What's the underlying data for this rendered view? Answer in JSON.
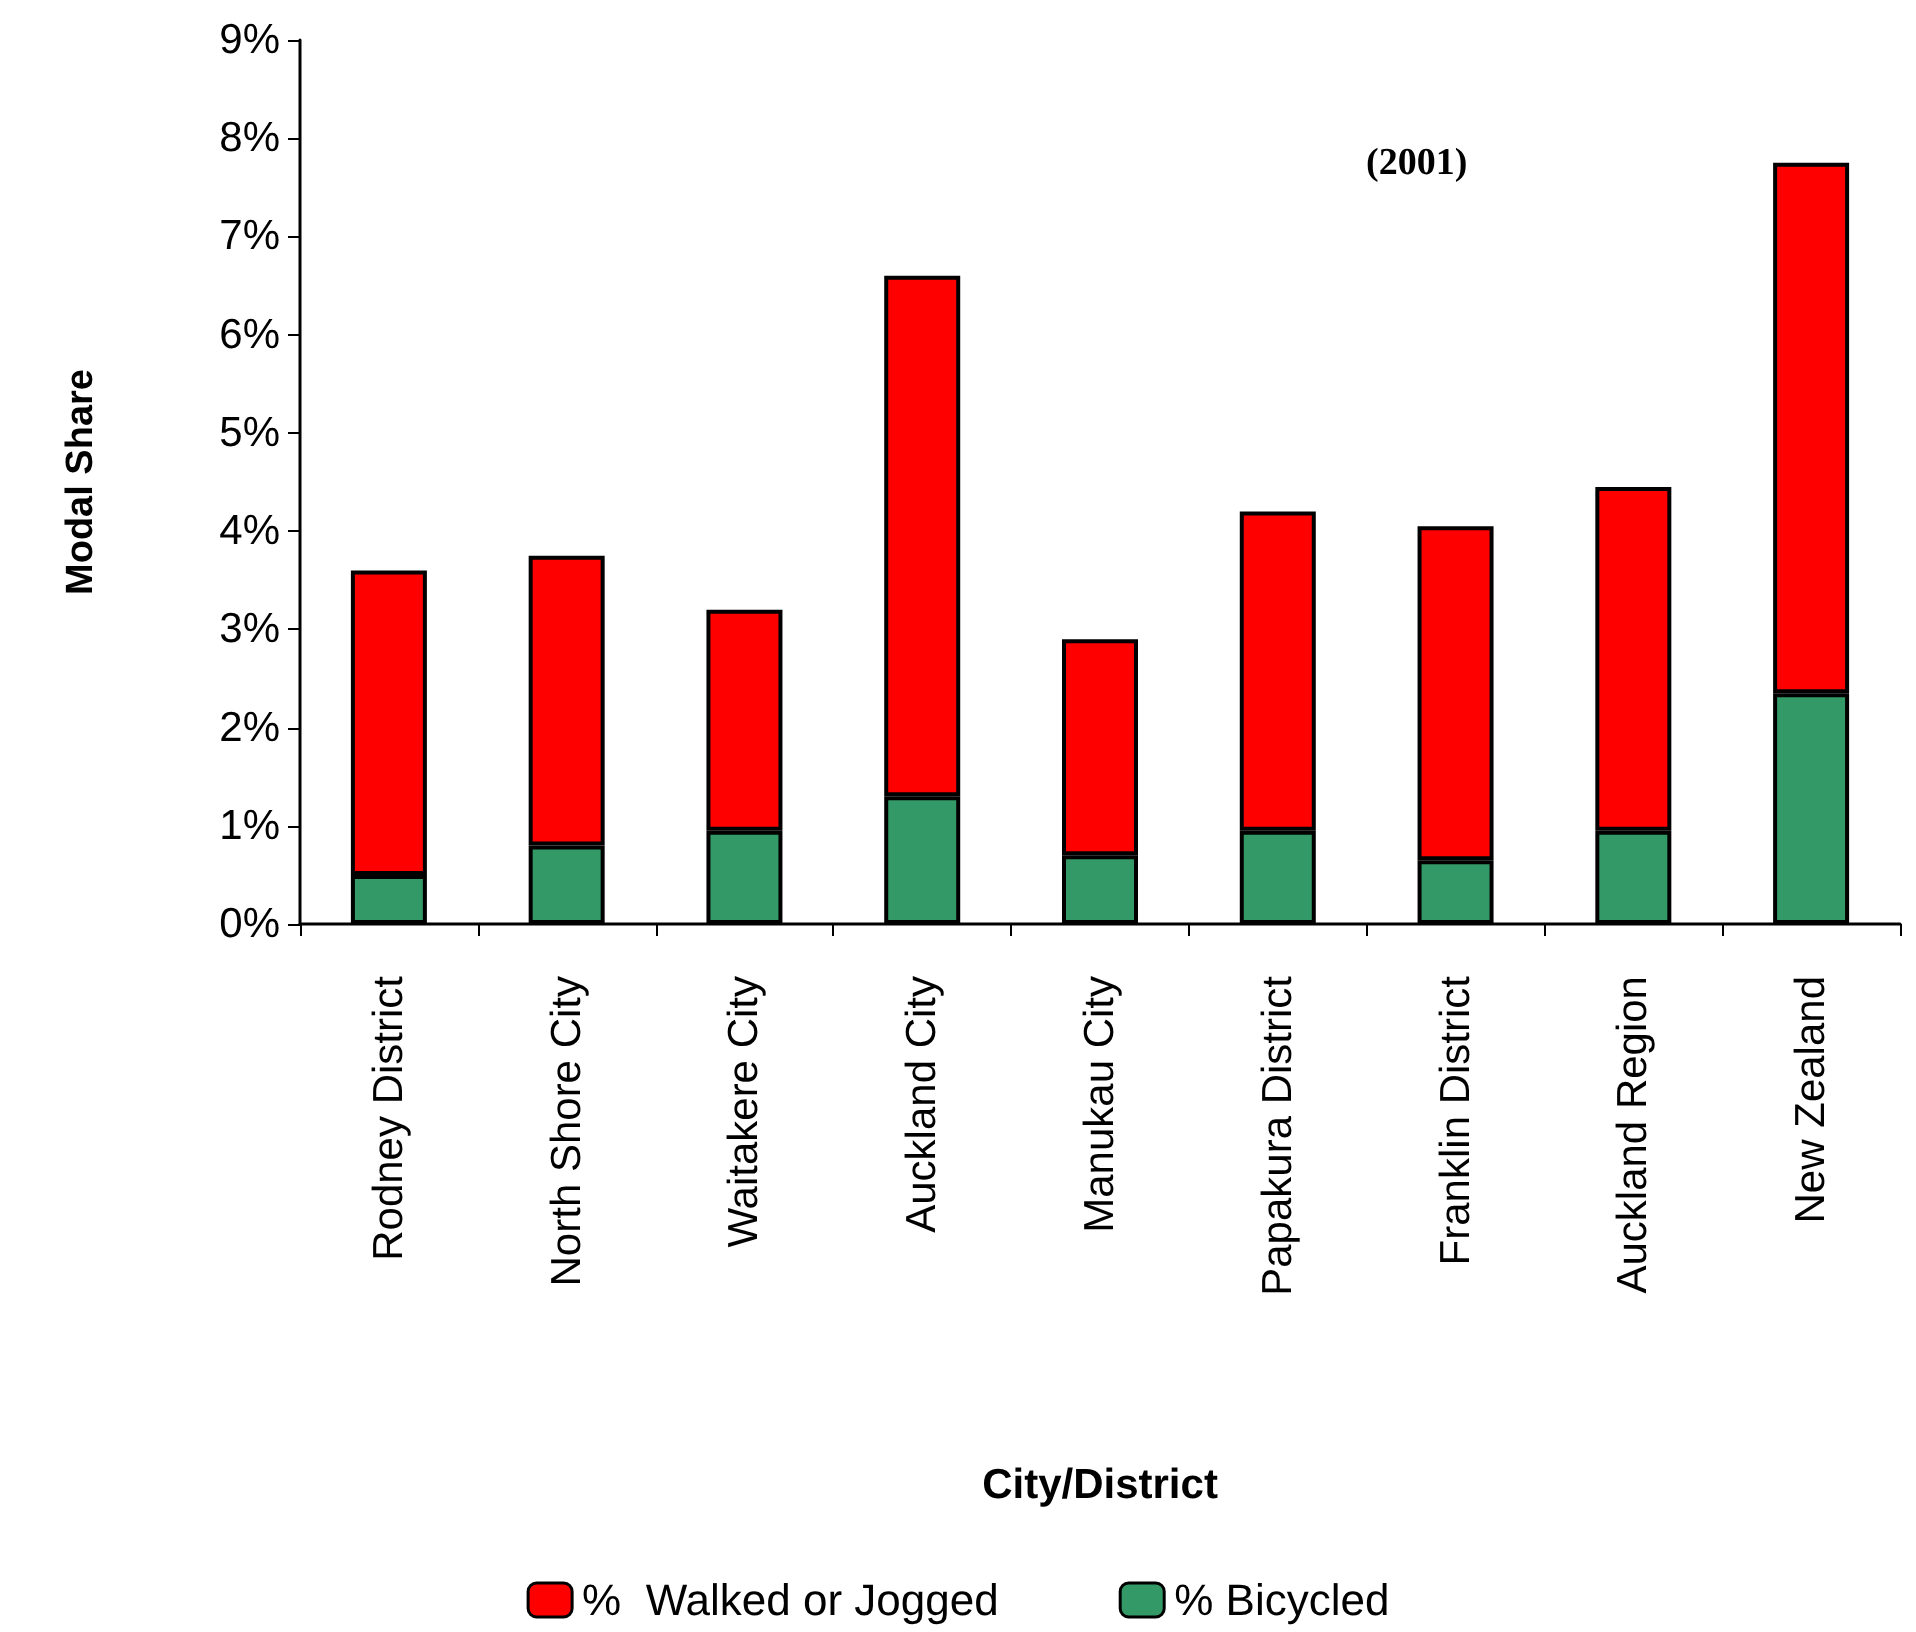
{
  "chart_data": {
    "type": "bar",
    "stacked": true,
    "xlabel": "City/District",
    "ylabel": "Modal Share",
    "annotations": [
      "(2001)"
    ],
    "categories": [
      "Rodney District",
      "North Shore City",
      "Waitakere City",
      "Auckland City",
      "Manukau City",
      "Papakura District",
      "Franklin District",
      "Auckland Region",
      "New Zealand"
    ],
    "series": [
      {
        "name": "% Bicycled",
        "color": "#339966",
        "values": [
          0.5,
          0.8,
          0.95,
          1.3,
          0.7,
          0.95,
          0.65,
          0.95,
          2.35
        ]
      },
      {
        "name": "%  Walked or Jogged",
        "color": "#ff0000",
        "values": [
          3.1,
          2.95,
          2.25,
          5.3,
          2.2,
          3.25,
          3.4,
          3.5,
          5.4
        ]
      }
    ],
    "ylim": [
      0,
      9
    ],
    "yticks": [
      {
        "value": 0,
        "label": "0%"
      },
      {
        "value": 1,
        "label": "1%"
      },
      {
        "value": 2,
        "label": "2%"
      },
      {
        "value": 3,
        "label": "3%"
      },
      {
        "value": 4,
        "label": "4%"
      },
      {
        "value": 5,
        "label": "5%"
      },
      {
        "value": 6,
        "label": "6%"
      },
      {
        "value": 7,
        "label": "7%"
      },
      {
        "value": 8,
        "label": "8%"
      },
      {
        "value": 9,
        "label": "9%"
      }
    ],
    "grid": false,
    "legend": "bottom"
  }
}
